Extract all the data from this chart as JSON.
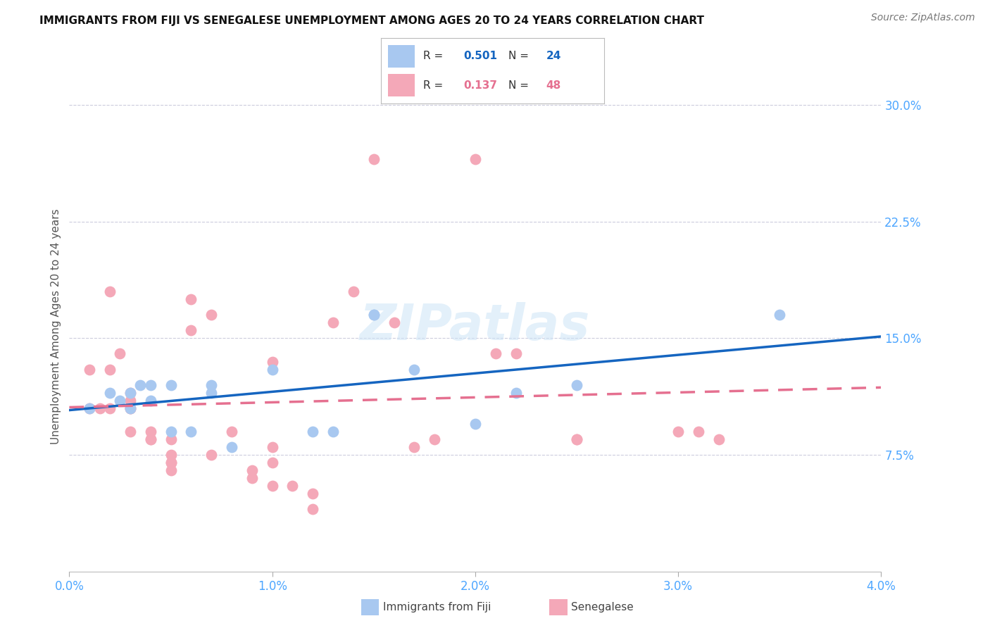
{
  "title": "IMMIGRANTS FROM FIJI VS SENEGALESE UNEMPLOYMENT AMONG AGES 20 TO 24 YEARS CORRELATION CHART",
  "source": "Source: ZipAtlas.com",
  "ylabel": "Unemployment Among Ages 20 to 24 years",
  "legend_label_fiji": "Immigrants from Fiji",
  "legend_label_senegalese": "Senegalese",
  "fiji_R": "0.501",
  "fiji_N": "24",
  "senegalese_R": "0.137",
  "senegalese_N": "48",
  "fiji_scatter_color": "#a8c8f0",
  "senegalese_scatter_color": "#f4a8b8",
  "fiji_line_color": "#1565c0",
  "senegalese_line_color": "#e57090",
  "text_blue_color": "#4da6ff",
  "title_color": "#111111",
  "source_color": "#777777",
  "background_color": "#ffffff",
  "grid_color": "#ccccdd",
  "xlim": [
    0.0,
    0.04
  ],
  "ylim": [
    0.0,
    0.315
  ],
  "ytick_vals": [
    0.075,
    0.15,
    0.225,
    0.3
  ],
  "ytick_labels": [
    "7.5%",
    "15.0%",
    "22.5%",
    "30.0%"
  ],
  "xtick_vals": [
    0.0,
    0.01,
    0.02,
    0.03,
    0.04
  ],
  "xtick_labels": [
    "0.0%",
    "1.0%",
    "2.0%",
    "3.0%",
    "4.0%"
  ],
  "fiji_x": [
    0.001,
    0.002,
    0.0025,
    0.003,
    0.003,
    0.0035,
    0.004,
    0.004,
    0.005,
    0.005,
    0.006,
    0.007,
    0.007,
    0.008,
    0.01,
    0.012,
    0.013,
    0.015,
    0.015,
    0.017,
    0.02,
    0.022,
    0.025,
    0.035
  ],
  "fiji_y": [
    0.105,
    0.115,
    0.11,
    0.115,
    0.105,
    0.12,
    0.11,
    0.12,
    0.09,
    0.12,
    0.09,
    0.12,
    0.115,
    0.08,
    0.13,
    0.09,
    0.09,
    0.165,
    0.165,
    0.13,
    0.095,
    0.115,
    0.12,
    0.165
  ],
  "senegalese_x": [
    0.001,
    0.001,
    0.0015,
    0.002,
    0.002,
    0.002,
    0.0025,
    0.003,
    0.003,
    0.003,
    0.003,
    0.003,
    0.004,
    0.004,
    0.004,
    0.005,
    0.005,
    0.005,
    0.005,
    0.005,
    0.006,
    0.006,
    0.007,
    0.007,
    0.008,
    0.009,
    0.009,
    0.01,
    0.01,
    0.01,
    0.01,
    0.011,
    0.012,
    0.012,
    0.013,
    0.014,
    0.015,
    0.016,
    0.017,
    0.018,
    0.02,
    0.021,
    0.022,
    0.025,
    0.025,
    0.03,
    0.031,
    0.032
  ],
  "senegalese_y": [
    0.13,
    0.105,
    0.105,
    0.105,
    0.18,
    0.13,
    0.14,
    0.105,
    0.11,
    0.105,
    0.09,
    0.115,
    0.085,
    0.085,
    0.09,
    0.085,
    0.07,
    0.075,
    0.07,
    0.065,
    0.175,
    0.155,
    0.165,
    0.075,
    0.09,
    0.065,
    0.06,
    0.055,
    0.07,
    0.08,
    0.135,
    0.055,
    0.05,
    0.04,
    0.16,
    0.18,
    0.265,
    0.16,
    0.08,
    0.085,
    0.265,
    0.14,
    0.14,
    0.085,
    0.085,
    0.09,
    0.09,
    0.085
  ]
}
